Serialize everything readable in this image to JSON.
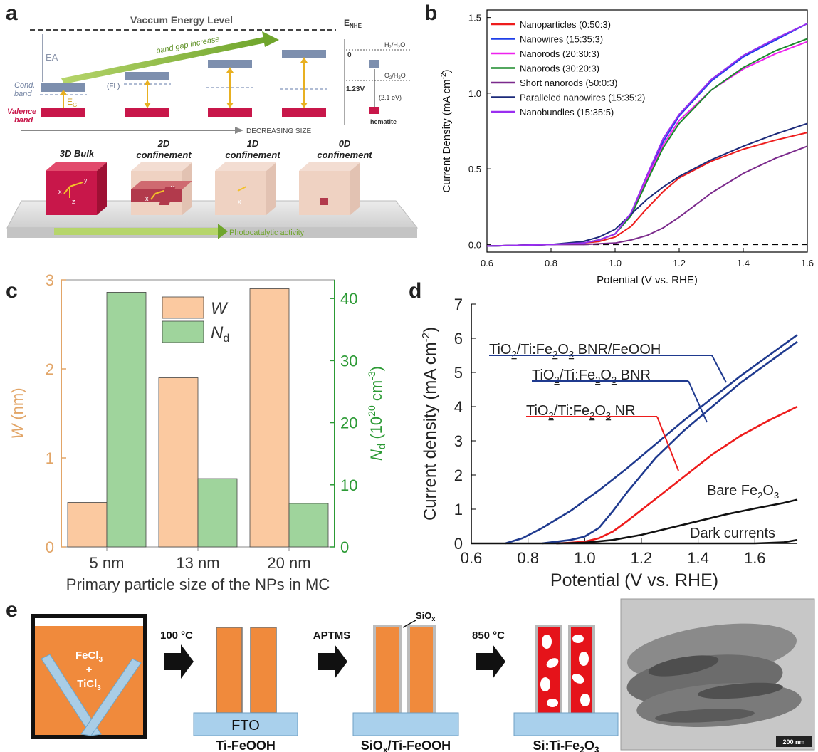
{
  "panels": {
    "a": "a",
    "b": "b",
    "c": "c",
    "d": "d",
    "e": "e"
  },
  "panel_a": {
    "vacuum": "Vaccum Energy Level",
    "ea": "EA",
    "band_gap": "band gap increase",
    "cond": "Cond.",
    "cond2": "band",
    "fl": "(FL)",
    "eg": "E",
    "eg_sub": "G",
    "valence": "Valence",
    "valence2": "band",
    "decreasing": "DECREASING SIZE",
    "enhe": "E",
    "enhe_sub": "NHE",
    "zero": "0",
    "h2": "H",
    "h2_a": "2",
    "h2_b": "/H",
    "h2_c": "2",
    "h2_d": "O",
    "o2": "O",
    "o2_a": "2",
    "o2_b": "/H",
    "o2_c": "2",
    "o2_d": "O",
    "v123": "1.23V",
    "ev21": "(2.1 eV)",
    "hematite": "hematite",
    "c3d": "3D Bulk",
    "c2d_1": "2D",
    "c2d_2": "confinement",
    "c1d_1": "1D",
    "c1d_2": "confinement",
    "c0d_1": "0D",
    "c0d_2": "confinement",
    "photo": "Photocatalytic activity",
    "ax_x": "x",
    "ax_y": "y",
    "ax_z": "z"
  },
  "chart_data": [
    {
      "id": "b",
      "type": "line",
      "xlabel": "Potential (V vs. RHE)",
      "ylabel": "Current Density (mA cm",
      "ylabel_sup": "-2",
      "ylabel_end": ")",
      "xlim": [
        0.6,
        1.6
      ],
      "ylim": [
        -0.05,
        1.55
      ],
      "xticks": [
        "0.6",
        "0.8",
        "1.0",
        "1.2",
        "1.4",
        "1.6"
      ],
      "yticks": [
        "0.0",
        "0.5",
        "1.0",
        "1.5"
      ],
      "legend_position": "top-left",
      "series": [
        {
          "name": "Nanoparticles (0:50:3)",
          "color": "#ee1c1c",
          "x": [
            0.6,
            0.8,
            0.9,
            0.95,
            1.0,
            1.05,
            1.1,
            1.15,
            1.2,
            1.3,
            1.4,
            1.5,
            1.6
          ],
          "y": [
            -0.01,
            0.0,
            0.01,
            0.02,
            0.05,
            0.12,
            0.24,
            0.35,
            0.44,
            0.55,
            0.63,
            0.69,
            0.74
          ]
        },
        {
          "name": "Nanowires (15:35:3)",
          "color": "#1f3fe8",
          "x": [
            0.6,
            0.8,
            0.9,
            0.95,
            1.0,
            1.05,
            1.1,
            1.15,
            1.2,
            1.3,
            1.4,
            1.5,
            1.6
          ],
          "y": [
            -0.01,
            0.0,
            0.01,
            0.03,
            0.07,
            0.2,
            0.45,
            0.68,
            0.85,
            1.08,
            1.24,
            1.35,
            1.46
          ]
        },
        {
          "name": "Nanorods (20:30:3)",
          "color": "#ee22ee",
          "x": [
            0.6,
            0.8,
            0.9,
            0.95,
            1.0,
            1.05,
            1.1,
            1.15,
            1.2,
            1.3,
            1.4,
            1.5,
            1.6
          ],
          "y": [
            -0.01,
            0.0,
            0.01,
            0.03,
            0.07,
            0.2,
            0.44,
            0.66,
            0.82,
            1.02,
            1.16,
            1.26,
            1.34
          ]
        },
        {
          "name": "Nanorods (30:20:3)",
          "color": "#1a8a2a",
          "x": [
            0.6,
            0.8,
            0.9,
            0.95,
            1.0,
            1.05,
            1.1,
            1.15,
            1.2,
            1.3,
            1.4,
            1.5,
            1.6
          ],
          "y": [
            -0.01,
            0.0,
            0.01,
            0.03,
            0.07,
            0.19,
            0.42,
            0.64,
            0.8,
            1.02,
            1.17,
            1.28,
            1.36
          ]
        },
        {
          "name": "Short nanorods (50:0:3)",
          "color": "#7b2a8c",
          "x": [
            0.6,
            0.8,
            0.9,
            1.0,
            1.05,
            1.1,
            1.15,
            1.2,
            1.25,
            1.3,
            1.4,
            1.5,
            1.6
          ],
          "y": [
            -0.01,
            0.0,
            0.0,
            0.01,
            0.03,
            0.06,
            0.11,
            0.18,
            0.26,
            0.34,
            0.47,
            0.57,
            0.65
          ]
        },
        {
          "name": "Paralleled nanowires (15:35:2)",
          "color": "#1c2a7a",
          "x": [
            0.6,
            0.8,
            0.9,
            0.95,
            1.0,
            1.05,
            1.1,
            1.15,
            1.2,
            1.3,
            1.4,
            1.5,
            1.6
          ],
          "y": [
            -0.01,
            0.0,
            0.02,
            0.05,
            0.1,
            0.2,
            0.3,
            0.38,
            0.45,
            0.56,
            0.65,
            0.73,
            0.8
          ]
        },
        {
          "name": "Nanobundles (15:35:5)",
          "color": "#9a2ef0",
          "x": [
            0.6,
            0.8,
            0.9,
            0.95,
            1.0,
            1.05,
            1.1,
            1.15,
            1.2,
            1.3,
            1.4,
            1.5,
            1.6
          ],
          "y": [
            -0.01,
            0.0,
            0.01,
            0.03,
            0.07,
            0.21,
            0.46,
            0.7,
            0.86,
            1.09,
            1.25,
            1.36,
            1.46
          ]
        }
      ],
      "dashed_zero": true
    },
    {
      "id": "c",
      "type": "bar",
      "xlabel": "Primary particle size of the NPs in MC",
      "categories": [
        "5 nm",
        "13 nm",
        "20 nm"
      ],
      "ylabel_left": "W",
      "ylabel_left_unit": " (nm)",
      "ylabel_right": "N",
      "ylabel_right_sub": "d",
      "ylabel_right_unit": " (10",
      "ylabel_right_sup": "20",
      "ylabel_right_unit2": " cm",
      "ylabel_right_sup2": "-3",
      "ylabel_right_end": ")",
      "ylim_left": [
        0,
        3
      ],
      "ylim_right": [
        0,
        43
      ],
      "yticks_left": [
        "0",
        "1",
        "2",
        "3"
      ],
      "yticks_right": [
        "0",
        "10",
        "20",
        "30",
        "40"
      ],
      "legend_position": "top-center",
      "series": [
        {
          "name": "W",
          "color": "#fbc9a0",
          "axis": "left",
          "values": [
            0.5,
            1.9,
            2.9
          ]
        },
        {
          "name": "N",
          "name_sub": "d",
          "color": "#9fd49c",
          "axis": "right",
          "values": [
            41,
            11,
            7
          ]
        }
      ],
      "left_axis_color": "#e2a567",
      "right_axis_color": "#2c9a35"
    },
    {
      "id": "d",
      "type": "line",
      "xlabel": "Potential (V vs. RHE)",
      "ylabel": "Current density (mA cm",
      "ylabel_sup": "-2",
      "ylabel_end": ")",
      "xlim": [
        0.6,
        1.75
      ],
      "ylim": [
        0,
        7
      ],
      "xticks": [
        "0.6",
        "0.8",
        "1.0",
        "1.2",
        "1.4",
        "1.6"
      ],
      "yticks": [
        "0",
        "1",
        "2",
        "3",
        "4",
        "5",
        "6",
        "7"
      ],
      "series": [
        {
          "label_html": "BNR/FeOOH",
          "color": "#1f3a8f",
          "x": [
            0.72,
            0.78,
            0.85,
            0.95,
            1.05,
            1.15,
            1.25,
            1.35,
            1.45,
            1.55,
            1.65,
            1.75
          ],
          "y": [
            0,
            0.15,
            0.45,
            0.95,
            1.55,
            2.2,
            2.9,
            3.6,
            4.25,
            4.9,
            5.5,
            6.1
          ]
        },
        {
          "label_html": "BNR",
          "color": "#1f3a8f",
          "x": [
            0.85,
            0.9,
            0.95,
            1.0,
            1.05,
            1.1,
            1.15,
            1.25,
            1.35,
            1.45,
            1.55,
            1.65,
            1.75
          ],
          "y": [
            0,
            0.05,
            0.1,
            0.2,
            0.45,
            0.95,
            1.5,
            2.5,
            3.3,
            4.0,
            4.7,
            5.3,
            5.9
          ]
        },
        {
          "label_html": "NR",
          "color": "#ee1c1c",
          "x": [
            0.9,
            0.95,
            1.0,
            1.05,
            1.1,
            1.15,
            1.25,
            1.35,
            1.45,
            1.55,
            1.65,
            1.75
          ],
          "y": [
            0,
            0.02,
            0.05,
            0.15,
            0.35,
            0.65,
            1.3,
            1.95,
            2.6,
            3.15,
            3.6,
            4.0
          ]
        },
        {
          "label_html": "Bare",
          "color": "#111111",
          "x": [
            0.9,
            1.0,
            1.1,
            1.2,
            1.3,
            1.4,
            1.5,
            1.6,
            1.7,
            1.75
          ],
          "y": [
            0,
            0.02,
            0.1,
            0.25,
            0.45,
            0.65,
            0.85,
            1.02,
            1.18,
            1.28
          ]
        },
        {
          "label_html": "Dark",
          "color": "#111111",
          "x": [
            0.6,
            1.0,
            1.4,
            1.6,
            1.7,
            1.75
          ],
          "y": [
            0,
            0,
            0,
            0,
            0.03,
            0.1
          ]
        }
      ],
      "labels": {
        "bnr_feooh": "BNR/FeOOH",
        "bnr": "BNR",
        "nr": "NR",
        "tio2": "TiO",
        "two": "2",
        "ti_fe": "/Ti:Fe",
        "fe2o3_3": "3",
        "o": "O",
        "bare": "Bare Fe",
        "bare_2": "2",
        "bare_o": "O",
        "bare_3": "3",
        "dark": "Dark currents"
      }
    }
  ],
  "panel_e": {
    "fecl": "FeCl",
    "fecl_3": "3",
    "plus": "+",
    "ticl": "TiCl",
    "ticl_3": "3",
    "step1": "100 °C",
    "fto": "FTO",
    "ti_feooh": "Ti-FeOOH",
    "step2": "APTMS",
    "siox": "SiO",
    "siox_x": "x",
    "siox_ti": "/Ti-FeOOH",
    "step3": "850 °C",
    "si_ti": "Si:Ti-Fe",
    "si_2": "2",
    "si_o": "O",
    "si_3": "3",
    "scale": "200 nm"
  }
}
